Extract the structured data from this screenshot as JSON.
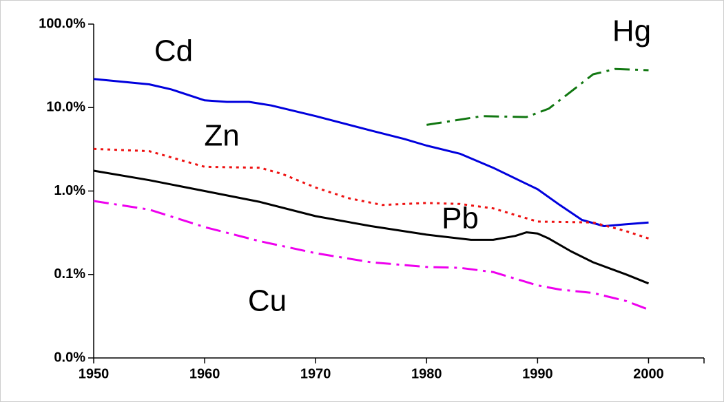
{
  "chart_data": {
    "type": "line",
    "log_y": true,
    "xlim": [
      1950,
      2005
    ],
    "xticks": [
      1950,
      1960,
      1970,
      1980,
      1990,
      2000
    ],
    "ylim": [
      0.01,
      100
    ],
    "yticks": [
      {
        "value": 0.01,
        "label": "0.0%"
      },
      {
        "value": 0.1,
        "label": "0.1%"
      },
      {
        "value": 1,
        "label": "1.0%"
      },
      {
        "value": 10,
        "label": "10.0%"
      },
      {
        "value": 100,
        "label": "100.0%"
      }
    ],
    "series": [
      {
        "name": "Cd",
        "color": "#0000dd",
        "dash": "solid",
        "x": [
          1950,
          1955,
          1957,
          1960,
          1962,
          1964,
          1966,
          1970,
          1975,
          1978,
          1980,
          1983,
          1986,
          1990,
          1992,
          1994,
          1996,
          1998,
          2000
        ],
        "values": [
          22,
          19,
          16.5,
          12.2,
          11.7,
          11.7,
          10.6,
          7.9,
          5.3,
          4.2,
          3.5,
          2.8,
          1.9,
          1.05,
          0.68,
          0.45,
          0.38,
          0.4,
          0.42
        ]
      },
      {
        "name": "Zn",
        "color": "#ee1111",
        "dash": "dot",
        "x": [
          1950,
          1955,
          1960,
          1965,
          1967,
          1970,
          1973,
          1976,
          1980,
          1983,
          1986,
          1990,
          1995,
          1998,
          2000
        ],
        "values": [
          3.2,
          3.0,
          1.95,
          1.9,
          1.6,
          1.1,
          0.82,
          0.68,
          0.72,
          0.7,
          0.62,
          0.43,
          0.42,
          0.33,
          0.27
        ]
      },
      {
        "name": "Pb",
        "color": "#000000",
        "dash": "solid",
        "x": [
          1950,
          1955,
          1960,
          1965,
          1970,
          1975,
          1980,
          1984,
          1986,
          1988,
          1989,
          1990,
          1991,
          1993,
          1995,
          1998,
          2000
        ],
        "values": [
          1.75,
          1.35,
          1.0,
          0.74,
          0.5,
          0.38,
          0.3,
          0.26,
          0.26,
          0.29,
          0.32,
          0.31,
          0.27,
          0.19,
          0.14,
          0.1,
          0.078
        ]
      },
      {
        "name": "Cu",
        "color": "#ee00ee",
        "dash": "dashdot",
        "x": [
          1950,
          1955,
          1960,
          1965,
          1970,
          1975,
          1980,
          1983,
          1986,
          1990,
          1992,
          1995,
          1998,
          2000
        ],
        "values": [
          0.76,
          0.6,
          0.37,
          0.25,
          0.18,
          0.14,
          0.123,
          0.12,
          0.107,
          0.074,
          0.066,
          0.06,
          0.048,
          0.038
        ]
      },
      {
        "name": "Hg",
        "color": "#117711",
        "dash": "dashdot",
        "x": [
          1980,
          1985,
          1989,
          1991,
          1993,
          1995,
          1997,
          2000
        ],
        "values": [
          6.2,
          7.9,
          7.7,
          9.7,
          15.5,
          25,
          29,
          28
        ]
      }
    ]
  }
}
